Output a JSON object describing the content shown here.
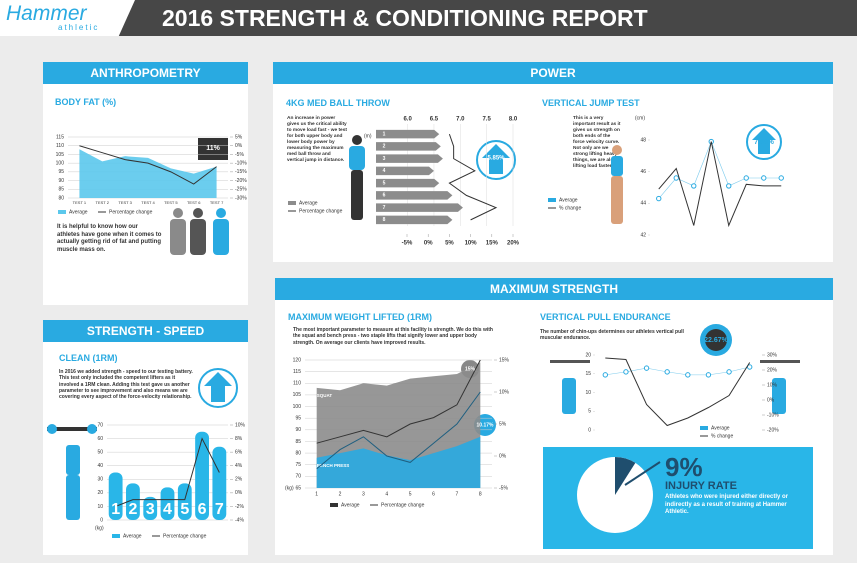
{
  "header": {
    "brand": "Hammer",
    "brand_sub": "athletic",
    "title": "2016 STRENGTH & CONDITIONING REPORT"
  },
  "sections": {
    "anthropometry": "ANTHROPOMETRY",
    "strength_speed": "STRENGTH - SPEED",
    "power": "POWER",
    "maximum_strength": "MAXIMUM STRENGTH"
  },
  "chart_data": [
    {
      "type": "combo",
      "title": "BODY FAT (%)",
      "text": "It is helpful to know how our athletes have gone when it comes to actually getting rid of fat and putting muscle mass on.",
      "annotation": "11%",
      "grid": true,
      "categories": [
        "TEST 1",
        "TEST 2",
        "TEST 3",
        "TEST 4",
        "TEST 5",
        "TEST 6",
        "TEST 7"
      ],
      "series": [
        {
          "name": "Average",
          "type": "area",
          "color": "#5bc8ec",
          "values": [
            108,
            101,
            104,
            103,
            97,
            94,
            98
          ]
        },
        {
          "name": "Percentage change",
          "type": "line",
          "axis": "y2",
          "color": "#333333",
          "values": [
            0,
            -4,
            -8,
            -10,
            -15,
            -22,
            -12
          ]
        }
      ],
      "ylim": [
        80,
        115
      ],
      "yticks": [
        80,
        85,
        90,
        95,
        100,
        105,
        110,
        115
      ],
      "y2lim": [
        -30,
        5
      ],
      "y2ticks": [
        {
          "value": 5,
          "label": "5%"
        },
        {
          "value": 0,
          "label": "0%"
        },
        {
          "value": -5,
          "label": "-5%"
        },
        {
          "value": -10,
          "label": "-10%"
        },
        {
          "value": -15,
          "label": "-15%"
        },
        {
          "value": -20,
          "label": "-20%"
        },
        {
          "value": -25,
          "label": "-25%"
        },
        {
          "value": -30,
          "label": "-30%"
        }
      ]
    },
    {
      "type": "hbar",
      "title": "4KG MED BALL THROW",
      "unit": "(m)",
      "annotation": "5.85%",
      "text": "An increase in power gives us the critical ability to move load fast - we test for both upper body and lower body power by measuring the maximum med ball throw and vertical jump in distance.",
      "categories": [
        "1",
        "2",
        "3",
        "4",
        "5",
        "6",
        "7",
        "8"
      ],
      "series": [
        {
          "name": "Average",
          "type": "bar",
          "color": "#8c8c8c",
          "values": [
            6.6,
            6.63,
            6.67,
            6.5,
            6.6,
            6.85,
            7.05,
            6.85
          ]
        },
        {
          "name": "Percentage change",
          "type": "line",
          "axis": "x2",
          "color": "#333333",
          "values": [
            5,
            6,
            6,
            11,
            5,
            9,
            16,
            10
          ]
        }
      ],
      "xlim": [
        5.4,
        8.0
      ],
      "xticks": [
        {
          "value": 6,
          "label": "6.0"
        },
        6.5,
        {
          "value": 7,
          "label": "7.0"
        },
        7.5,
        {
          "value": 8,
          "label": "8.0"
        }
      ],
      "x2lim": [
        -5,
        20
      ],
      "x2ticks": [
        {
          "value": -5,
          "label": "-5%"
        },
        {
          "value": 0,
          "label": "0%"
        },
        {
          "value": 5,
          "label": "5%"
        },
        {
          "value": 10,
          "label": "10%"
        },
        {
          "value": 15,
          "label": "15%"
        },
        {
          "value": 20,
          "label": "20%"
        }
      ]
    },
    {
      "type": "combo",
      "title": "VERTICAL JUMP TEST",
      "unit": "(cm)",
      "annotation": "7.56%",
      "text": "This is a very important result as it gives us strength on both ends of the force velocity curve. Not only are we strong lifting heavy things, we are also lifting load faster.",
      "categories": [
        null,
        null,
        null,
        null,
        null,
        null,
        null,
        null
      ],
      "series": [
        {
          "name": "Average",
          "type": "dots",
          "color": "#29aae1",
          "values": [
            44.3,
            45.6,
            45.1,
            47.9,
            45.1,
            45.6,
            45.6,
            45.6
          ]
        },
        {
          "name": "% change",
          "type": "line",
          "color": "#333333",
          "values": [
            44.9,
            46.2,
            42.6,
            47.9,
            42.6,
            45.2,
            45.1,
            45.1
          ]
        }
      ],
      "ylim": [
        42,
        48
      ],
      "yticks": [
        42,
        44,
        46,
        48
      ]
    },
    {
      "type": "combo",
      "title": "MAXIMUM WEIGHT LIFTED (1RM)",
      "unit": "(kg)",
      "annotations": [
        "15%",
        "10.17%"
      ],
      "legend": [
        "Average",
        "Percentage change"
      ],
      "grid": true,
      "text": "The most important parameter to measure at this facility is strength. We do this with the squat and bench press - two staple lifts that signify lower and upper body strength. On average our clients have improved results.",
      "categories": [
        "1",
        "2",
        "3",
        "4",
        "5",
        "6",
        "7",
        "8"
      ],
      "series": [
        {
          "name": "SQUAT",
          "type": "area",
          "color": "#8c8c8c",
          "values": [
            108,
            107,
            110,
            109,
            112,
            113,
            114,
            119
          ]
        },
        {
          "name": "BENCH PRESS",
          "type": "area",
          "color": "#29aae1",
          "values": [
            78,
            80,
            82,
            79,
            77,
            80,
            83,
            87
          ]
        },
        {
          "name": "SQUAT",
          "type": "line",
          "axis": "y2",
          "color": "#333333",
          "values": [
            2,
            3,
            4,
            3,
            5,
            6,
            8,
            15
          ]
        },
        {
          "name": "BENCH PRESS",
          "type": "line",
          "axis": "y2",
          "color": "#1f5f80",
          "values": [
            -2,
            1,
            3,
            0,
            -1,
            2,
            5,
            10
          ]
        }
      ],
      "ylim": [
        65,
        120
      ],
      "yticks": [
        65,
        70,
        75,
        80,
        85,
        90,
        95,
        100,
        105,
        110,
        115,
        120
      ],
      "y2lim": [
        -5,
        15
      ],
      "y2ticks": [
        {
          "value": 15,
          "label": "15%"
        },
        {
          "value": 10,
          "label": "10%"
        },
        {
          "value": 5,
          "label": "5%"
        },
        {
          "value": 0,
          "label": "0%"
        },
        {
          "value": -5,
          "label": "-5%"
        }
      ]
    },
    {
      "type": "combo",
      "title": "VERTICAL PULL ENDURANCE",
      "annotation": "22.67%",
      "text": "The number of chin-ups determines our athletes vertical pull muscular endurance.",
      "categories": [
        null,
        null,
        null,
        null,
        null,
        null,
        null,
        null
      ],
      "series": [
        {
          "name": "Average",
          "type": "dots",
          "color": "#29aae1",
          "values": [
            14.7,
            15.5,
            16.5,
            15.5,
            14.7,
            14.7,
            15.5,
            16.8
          ]
        },
        {
          "name": "% change",
          "type": "line",
          "axis": "y2",
          "color": "#333333",
          "values": [
            28,
            27,
            -3,
            -17,
            -12,
            -5,
            3,
            25
          ]
        }
      ],
      "ylim": [
        0,
        20
      ],
      "yticks": [
        0,
        5,
        10,
        15,
        20
      ],
      "y2lim": [
        -20,
        30
      ],
      "y2ticks": [
        {
          "value": 30,
          "label": "30%"
        },
        {
          "value": 20,
          "label": "20%"
        },
        {
          "value": 10,
          "label": "10%"
        },
        {
          "value": 0,
          "label": "0%"
        },
        {
          "value": -10,
          "label": "-10%"
        },
        {
          "value": -20,
          "label": "-20%"
        }
      ]
    },
    {
      "type": "combo",
      "title": "CLEAN (1RM)",
      "unit": "(kg)",
      "annotation": "5%",
      "grid": true,
      "text": "In 2016 we added strength - speed to our testing battery. This test only included the competent lifters as it involved a 1RM clean. Adding this test gave us another parameter to see improvement and also means we are covering every aspect of the force-velocity relationship.",
      "categories": [
        "1",
        "2",
        "3",
        "4",
        "5",
        "6",
        "7"
      ],
      "series": [
        {
          "name": "Average",
          "type": "bar",
          "color": "#29b6e8",
          "values": [
            35,
            27,
            17,
            24,
            27,
            65,
            54
          ]
        },
        {
          "name": "Percentage change",
          "type": "line",
          "axis": "y2",
          "color": "#333333",
          "values": [
            -2,
            -1,
            -1,
            -1,
            -1,
            8,
            3
          ]
        }
      ],
      "ylim": [
        0,
        70
      ],
      "yticks": [
        0,
        10,
        20,
        30,
        40,
        50,
        60,
        70
      ],
      "y2lim": [
        -4,
        10
      ],
      "y2ticks": [
        {
          "value": 10,
          "label": "10%"
        },
        {
          "value": 8,
          "label": "8%"
        },
        {
          "value": 6,
          "label": "6%"
        },
        {
          "value": 4,
          "label": "4%"
        },
        {
          "value": 2,
          "label": "2%"
        },
        {
          "value": 0,
          "label": "0%"
        },
        {
          "value": -2,
          "label": "-2%"
        },
        {
          "value": -4,
          "label": "-4%"
        }
      ]
    },
    {
      "type": "pie",
      "title": "INJURY RATE",
      "values": [
        9
      ],
      "value_labels": [
        "9%"
      ],
      "colors": [
        "#1f4e6e"
      ],
      "text": "Athletes who were injured either directly or indirectly as a result of training at Hammer Athletic."
    }
  ]
}
